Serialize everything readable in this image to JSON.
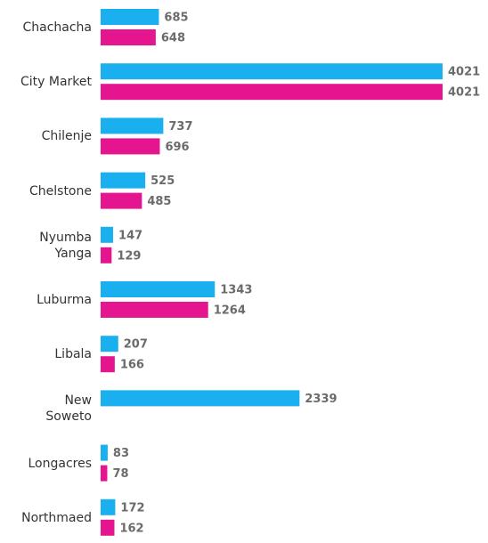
{
  "chart_data": {
    "type": "bar",
    "orientation": "horizontal",
    "categories": [
      "Chachacha",
      "City Market",
      "Chilenje",
      "Chelstone",
      "Nyumba\nYanga",
      "Luburma",
      "Libala",
      "New\nSoweto",
      "Longacres",
      "Northmaed"
    ],
    "series": [
      {
        "color": "#1ab0ef",
        "values": [
          685,
          4021,
          737,
          525,
          147,
          1343,
          207,
          2339,
          83,
          172
        ]
      },
      {
        "color": "#e5158f",
        "values": [
          648,
          4021,
          696,
          485,
          129,
          1264,
          166,
          null,
          78,
          162
        ]
      }
    ]
  }
}
